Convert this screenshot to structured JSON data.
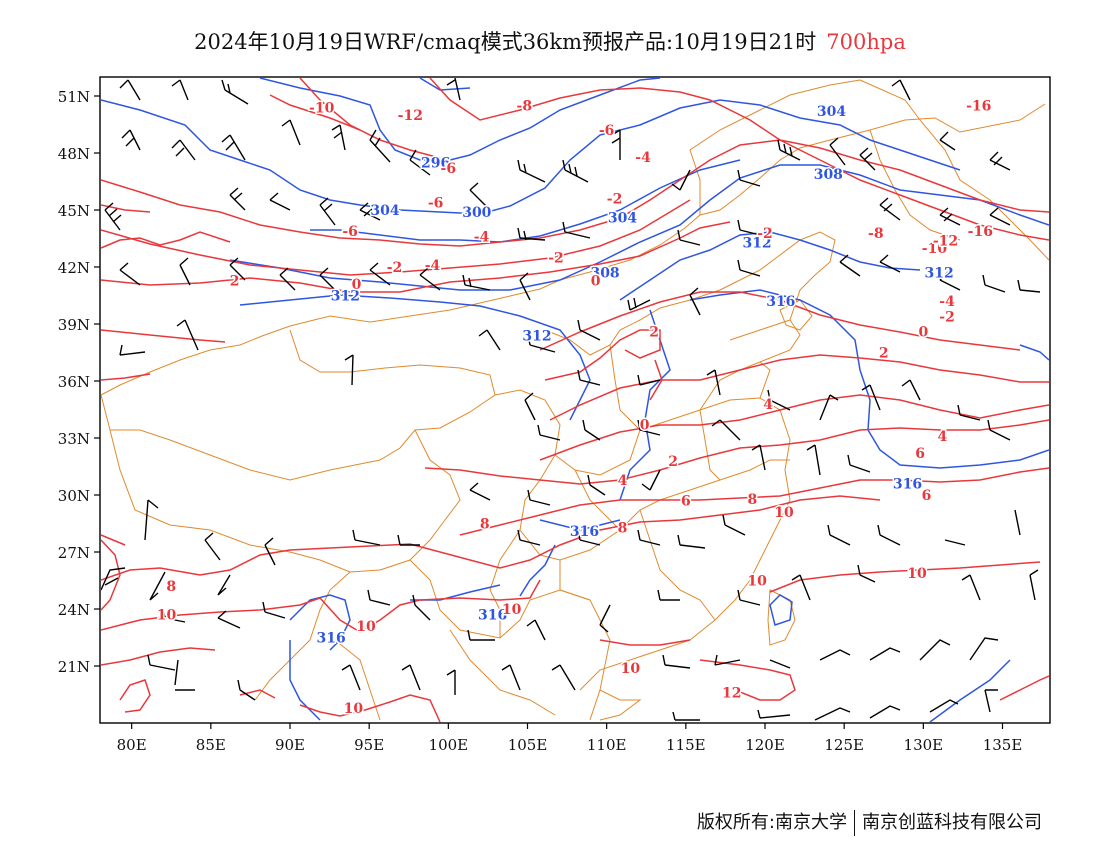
{
  "title": {
    "main": "2024年10月19日WRF/cmaq模式36km预报产品:10月19日21时",
    "level": "700hpa"
  },
  "footer": {
    "copyright": "版权所有:南京大学",
    "company": "南京创蓝科技有限公司"
  },
  "colors": {
    "temperature_contour": "#e8383c",
    "height_contour": "#2f56e0",
    "border": "#e08a2e",
    "wind_barb": "#000000"
  },
  "axes": {
    "lat_labels": [
      "51N",
      "48N",
      "45N",
      "42N",
      "39N",
      "36N",
      "33N",
      "30N",
      "27N",
      "24N",
      "21N"
    ],
    "lat_values": [
      51,
      48,
      45,
      42,
      39,
      36,
      33,
      30,
      27,
      24,
      21
    ],
    "lon_labels": [
      "80E",
      "85E",
      "90E",
      "95E",
      "100E",
      "105E",
      "110E",
      "115E",
      "120E",
      "125E",
      "130E",
      "135E"
    ],
    "lon_values": [
      80,
      85,
      90,
      95,
      100,
      105,
      110,
      115,
      120,
      125,
      130,
      135
    ],
    "lon_range": [
      78,
      138
    ],
    "lat_range": [
      18,
      52
    ]
  },
  "height_labels": [
    {
      "text": "296",
      "lon": 99.2,
      "lat": 47.5
    },
    {
      "text": "300",
      "lon": 101.8,
      "lat": 44.9
    },
    {
      "text": "304",
      "lon": 96.0,
      "lat": 45.0
    },
    {
      "text": "304",
      "lon": 111.0,
      "lat": 44.6
    },
    {
      "text": "304",
      "lon": 124.2,
      "lat": 50.2
    },
    {
      "text": "308",
      "lon": 109.9,
      "lat": 41.7
    },
    {
      "text": "308",
      "lon": 124.0,
      "lat": 46.9
    },
    {
      "text": "312",
      "lon": 93.5,
      "lat": 40.5
    },
    {
      "text": "312",
      "lon": 105.6,
      "lat": 38.4
    },
    {
      "text": "312",
      "lon": 119.5,
      "lat": 43.3
    },
    {
      "text": "312",
      "lon": 131.0,
      "lat": 41.7
    },
    {
      "text": "316",
      "lon": 121.0,
      "lat": 40.2
    },
    {
      "text": "316",
      "lon": 129.0,
      "lat": 30.6
    },
    {
      "text": "316",
      "lon": 108.6,
      "lat": 28.1
    },
    {
      "text": "316",
      "lon": 102.8,
      "lat": 23.7
    },
    {
      "text": "316",
      "lon": 92.6,
      "lat": 22.5
    }
  ],
  "temp_labels": [
    {
      "text": "-12",
      "lon": 97.6,
      "lat": 50.0
    },
    {
      "text": "-10",
      "lon": 92.0,
      "lat": 50.4
    },
    {
      "text": "-8",
      "lon": 104.8,
      "lat": 50.5
    },
    {
      "text": "-16",
      "lon": 133.5,
      "lat": 50.5
    },
    {
      "text": "-6",
      "lon": 100.0,
      "lat": 47.2
    },
    {
      "text": "-6",
      "lon": 110.0,
      "lat": 49.2
    },
    {
      "text": "-4",
      "lon": 112.3,
      "lat": 47.8
    },
    {
      "text": "-6",
      "lon": 99.2,
      "lat": 45.4
    },
    {
      "text": "-2",
      "lon": 110.5,
      "lat": 45.6
    },
    {
      "text": "-6",
      "lon": 93.8,
      "lat": 43.9
    },
    {
      "text": "-4",
      "lon": 102.1,
      "lat": 43.6
    },
    {
      "text": "-2",
      "lon": 120.0,
      "lat": 43.8
    },
    {
      "text": "-4",
      "lon": 99.0,
      "lat": 42.1
    },
    {
      "text": "-2",
      "lon": 96.6,
      "lat": 42.0
    },
    {
      "text": "-2",
      "lon": 106.8,
      "lat": 42.5
    },
    {
      "text": "0",
      "lon": 109.3,
      "lat": 41.3
    },
    {
      "text": "0",
      "lon": 94.2,
      "lat": 41.1
    },
    {
      "text": "2",
      "lon": 86.5,
      "lat": 41.3
    },
    {
      "text": "-8",
      "lon": 127.0,
      "lat": 43.8
    },
    {
      "text": "-10",
      "lon": 130.7,
      "lat": 43.0
    },
    {
      "text": "-12",
      "lon": 131.4,
      "lat": 43.4
    },
    {
      "text": "-16",
      "lon": 133.6,
      "lat": 43.9
    },
    {
      "text": "-4",
      "lon": 131.5,
      "lat": 40.2
    },
    {
      "text": "-2",
      "lon": 131.5,
      "lat": 39.4
    },
    {
      "text": "0",
      "lon": 130.0,
      "lat": 38.6
    },
    {
      "text": "2",
      "lon": 127.5,
      "lat": 37.5
    },
    {
      "text": "2",
      "lon": 113.0,
      "lat": 38.6
    },
    {
      "text": "4",
      "lon": 120.2,
      "lat": 34.8
    },
    {
      "text": "0",
      "lon": 112.4,
      "lat": 33.7
    },
    {
      "text": "2",
      "lon": 114.2,
      "lat": 31.8
    },
    {
      "text": "4",
      "lon": 131.2,
      "lat": 33.1
    },
    {
      "text": "6",
      "lon": 129.8,
      "lat": 32.2
    },
    {
      "text": "4",
      "lon": 111.0,
      "lat": 30.8
    },
    {
      "text": "6",
      "lon": 115.0,
      "lat": 29.7
    },
    {
      "text": "8",
      "lon": 119.2,
      "lat": 29.8
    },
    {
      "text": "6",
      "lon": 130.2,
      "lat": 30.0
    },
    {
      "text": "10",
      "lon": 121.2,
      "lat": 29.1
    },
    {
      "text": "8",
      "lon": 111.0,
      "lat": 28.3
    },
    {
      "text": "8",
      "lon": 102.3,
      "lat": 28.5
    },
    {
      "text": "10",
      "lon": 129.6,
      "lat": 25.9
    },
    {
      "text": "10",
      "lon": 119.5,
      "lat": 25.5
    },
    {
      "text": "8",
      "lon": 82.5,
      "lat": 25.2
    },
    {
      "text": "10",
      "lon": 82.2,
      "lat": 23.7
    },
    {
      "text": "10",
      "lon": 104.0,
      "lat": 24.0
    },
    {
      "text": "10",
      "lon": 94.8,
      "lat": 23.1
    },
    {
      "text": "10",
      "lon": 111.5,
      "lat": 20.9
    },
    {
      "text": "12",
      "lon": 117.9,
      "lat": 19.6
    },
    {
      "text": "10",
      "lon": 94.0,
      "lat": 18.8
    }
  ]
}
